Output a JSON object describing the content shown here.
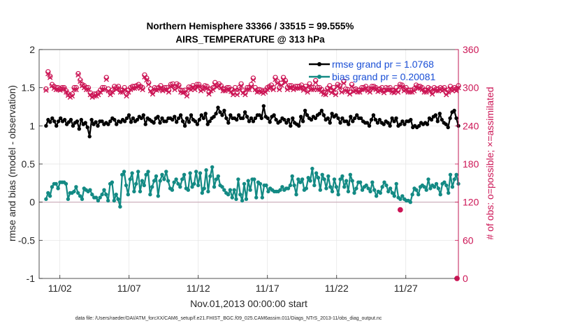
{
  "chart_data": {
    "type": "line",
    "title_line1": "Northern Hemisphere 33366 / 33515 = 99.555%",
    "title_line2": "AIRS_TEMPERATURE @ 313 hPa",
    "ylabel_left": "rmse and bias (model - observation)",
    "ylabel_right": "# of obs: o=possible; ×=assimilated",
    "xlabel": "Nov.01,2013 00:00:00 start",
    "footer": "data file: /Users/raeder/DAI/ATM_forcXX/CAM6_setup/f.e21.FHIST_BGC.f09_025.CAM6assim.011/Diags_NTrS_2013-11/obs_diag_output.nc",
    "ylim_left": [
      -1,
      2
    ],
    "ylim_right": [
      0,
      360
    ],
    "xlim": [
      0.5,
      30.8
    ],
    "left_ticks": [
      "-1",
      "-0.5",
      "0",
      "0.5",
      "1",
      "1.5",
      "2"
    ],
    "right_ticks": [
      "0",
      "60",
      "120",
      "180",
      "240",
      "300",
      "360"
    ],
    "x_ticks": [
      {
        "day": 2,
        "label": "11/02"
      },
      {
        "day": 7,
        "label": "11/07"
      },
      {
        "day": 12,
        "label": "11/12"
      },
      {
        "day": 17,
        "label": "11/17"
      },
      {
        "day": 22,
        "label": "11/22"
      },
      {
        "day": 27,
        "label": "11/27"
      }
    ],
    "legend": {
      "rmse": "rmse grand pr = 1.0768",
      "bias": "bias grand pr = 0.20081"
    },
    "colors": {
      "rmse": "#000000",
      "bias": "#138a84",
      "obs": "#cc1555",
      "legend_text": "#1a4fd6",
      "zero_line": "#c9a9b6",
      "grid": "#e3e3e3"
    },
    "series": [
      {
        "name": "rmse",
        "axis": "left",
        "values": [
          1.0,
          1.08,
          1.05,
          1.1,
          1.06,
          1.0,
          1.06,
          1.1,
          1.06,
          1.08,
          1.02,
          1.05,
          1.08,
          1.0,
          1.04,
          1.06,
          0.96,
          1.08,
          1.02,
          1.04,
          0.98,
          0.86,
          1.08,
          1.02,
          1.05,
          1.0,
          1.06,
          1.06,
          1.02,
          1.04,
          1.02,
          1.06,
          1.1,
          1.08,
          1.02,
          1.06,
          1.05,
          1.08,
          1.06,
          1.1,
          1.14,
          1.05,
          1.1,
          1.06,
          1.08,
          1.12,
          1.1,
          1.14,
          1.02,
          1.1,
          1.08,
          1.06,
          1.04,
          1.1,
          1.12,
          1.04,
          1.1,
          1.06,
          1.06,
          1.1,
          1.1,
          1.08,
          1.12,
          1.05,
          1.1,
          1.14,
          1.06,
          1.0,
          1.1,
          1.05,
          1.14,
          1.08,
          1.06,
          1.02,
          1.08,
          1.14,
          1.1,
          1.16,
          1.02,
          1.06,
          1.1,
          1.12,
          1.16,
          1.24,
          1.18,
          1.14,
          1.2,
          1.1,
          1.04,
          1.14,
          1.1,
          1.1,
          1.08,
          1.14,
          1.1,
          1.1,
          1.18,
          1.12,
          1.06,
          1.1,
          1.06,
          1.1,
          1.14,
          1.14,
          1.1,
          1.26,
          1.12,
          1.1,
          1.05,
          1.12,
          1.14,
          1.08,
          1.04,
          1.06,
          1.1,
          1.08,
          1.04,
          1.08,
          1.0,
          1.1,
          1.04,
          1.02,
          1.0,
          1.12,
          1.06,
          1.2,
          1.14,
          1.1,
          1.08,
          1.12,
          1.1,
          1.14,
          1.16,
          1.2,
          1.14,
          1.08,
          1.1,
          1.04,
          1.16,
          1.12,
          1.14,
          1.1,
          1.04,
          1.1,
          1.06,
          1.06,
          1.02,
          1.12,
          1.06,
          1.1,
          1.14,
          1.1,
          1.1,
          1.06,
          1.04,
          1.04,
          1.0,
          1.08,
          1.14,
          1.08,
          1.04,
          1.08,
          1.04,
          1.02,
          1.06,
          1.04,
          1.0,
          1.1,
          1.06,
          1.1,
          1.0,
          1.02,
          1.06,
          1.02,
          1.06,
          1.06,
          1.08,
          0.98,
          1.0,
          0.98,
          1.0,
          1.04,
          1.02,
          1.04,
          1.02,
          1.1,
          1.08,
          1.12,
          1.14,
          1.06,
          1.16,
          1.08,
          1.04,
          1.02,
          0.98,
          1.1,
          1.18,
          1.2,
          1.1,
          1.0
        ]
      },
      {
        "name": "bias",
        "axis": "left",
        "values": [
          0.04,
          0.12,
          0.08,
          0.2,
          0.24,
          0.24,
          0.18,
          0.26,
          0.26,
          0.26,
          0.24,
          0.04,
          0.12,
          0.12,
          0.14,
          0.2,
          0.12,
          0.08,
          0.04,
          0.18,
          0.16,
          0.14,
          0.16,
          0.1,
          0.06,
          0.06,
          0.02,
          0.06,
          0.1,
          0.16,
          0.1,
          0.02,
          0.24,
          0.26,
          0.02,
          0.1,
          0.04,
          -0.06,
          0.36,
          0.4,
          0.22,
          0.1,
          0.3,
          0.38,
          0.14,
          0.24,
          0.4,
          0.14,
          0.28,
          0.22,
          0.36,
          0.4,
          0.1,
          0.2,
          0.28,
          0.34,
          0.08,
          0.28,
          0.36,
          0.3,
          0.4,
          0.28,
          0.18,
          0.16,
          0.26,
          0.3,
          0.24,
          0.2,
          0.3,
          0.36,
          0.18,
          0.16,
          0.38,
          0.2,
          0.24,
          0.4,
          0.22,
          0.38,
          0.12,
          0.18,
          0.42,
          0.14,
          0.34,
          0.46,
          0.2,
          0.3,
          0.34,
          0.22,
          0.2,
          0.16,
          0.12,
          0.1,
          0.16,
          0.06,
          0.16,
          0.04,
          0.3,
          0.1,
          0.02,
          0.24,
          0.04,
          0.28,
          0.16,
          0.3,
          0.3,
          0.06,
          0.26,
          0.24,
          0.06,
          0.22,
          0.22,
          0.14,
          0.18,
          0.16,
          0.14,
          0.14,
          0.14,
          0.16,
          0.2,
          0.16,
          0.18,
          0.18,
          0.22,
          0.34,
          0.22,
          0.1,
          0.3,
          0.26,
          0.3,
          0.16,
          0.18,
          0.32,
          0.28,
          0.44,
          0.22,
          0.38,
          0.32,
          0.16,
          0.36,
          0.3,
          0.18,
          0.34,
          0.2,
          0.14,
          0.3,
          0.2,
          0.1,
          0.3,
          0.34,
          0.2,
          0.28,
          0.14,
          0.36,
          0.28,
          0.12,
          0.18,
          0.26,
          0.26,
          0.16,
          0.2,
          0.22,
          0.18,
          0.14,
          0.26,
          0.16,
          0.08,
          0.14,
          0.12,
          0.2,
          0.26,
          0.22,
          0.14,
          0.18,
          0.12,
          0.08,
          0.24,
          0.06,
          0.04,
          0.08,
          0.04,
          0.02,
          0.02,
          0.0,
          0.1,
          0.18,
          0.16,
          0.1,
          0.2,
          0.22,
          0.2,
          0.16,
          0.3,
          0.18,
          0.22,
          0.2,
          0.24,
          0.18,
          0.1,
          0.24,
          0.26,
          0.22,
          0.12,
          0.36,
          0.2,
          0.3,
          0.36,
          0.24
        ]
      },
      {
        "name": "obs_possible",
        "axis": "right",
        "values": [
          298,
          325,
          318,
          305,
          302,
          300,
          300,
          298,
          300,
          300,
          295,
          290,
          288,
          290,
          300,
          300,
          322,
          312,
          305,
          303,
          300,
          300,
          292,
          288,
          290,
          290,
          292,
          296,
          300,
          300,
          316,
          298,
          292,
          296,
          302,
          300,
          302,
          296,
          296,
          300,
          290,
          296,
          300,
          302,
          302,
          303,
          305,
          302,
          300,
          320,
          315,
          308,
          298,
          293,
          300,
          299,
          300,
          303,
          298,
          300,
          300,
          296,
          305,
          306,
          300,
          306,
          304,
          296,
          295,
          296,
          290,
          301,
          300,
          303,
          300,
          305,
          305,
          298,
          300,
          303,
          302,
          293,
          298,
          300,
          308,
          304,
          306,
          303,
          298,
          298,
          300,
          300,
          297,
          292,
          300,
          292,
          300,
          306,
          295,
          292,
          300,
          300,
          305,
          315,
          300,
          296,
          297,
          296,
          294,
          296,
          300,
          302,
          304,
          300,
          316,
          310,
          300,
          307,
          316,
          311,
          300,
          303,
          303,
          300,
          302,
          302,
          302,
          304,
          299,
          302,
          296,
          306,
          300,
          300,
          311,
          300,
          300,
          297,
          293,
          292,
          299,
          303,
          295,
          300,
          292,
          305,
          303,
          296,
          310,
          298,
          297,
          293,
          305,
          297,
          298,
          296,
          296,
          300,
          300,
          302,
          298,
          296,
          302,
          302,
          300,
          297,
          298,
          300,
          295,
          300,
          299,
          300,
          296,
          295,
          300,
          296,
          305,
          304,
          298,
          300,
          296,
          296,
          296,
          298,
          304,
          302,
          302,
          300,
          296,
          296,
          300,
          298,
          293,
          300,
          298,
          298,
          300,
          298,
          300,
          292,
          296,
          302,
          298,
          300,
          298,
          303
        ]
      },
      {
        "name": "obs_assimilated",
        "axis": "right",
        "values": [
          296,
          322,
          316,
          303,
          299,
          297,
          297,
          296,
          298,
          298,
          293,
          288,
          285,
          287,
          297,
          297,
          320,
          310,
          303,
          300,
          297,
          297,
          289,
          285,
          287,
          287,
          289,
          293,
          297,
          297,
          313,
          295,
          289,
          293,
          299,
          297,
          299,
          293,
          293,
          297,
          287,
          293,
          297,
          299,
          299,
          300,
          302,
          299,
          297,
          317,
          312,
          305,
          295,
          290,
          297,
          296,
          297,
          300,
          295,
          297,
          297,
          293,
          302,
          303,
          297,
          303,
          301,
          293,
          292,
          293,
          287,
          298,
          297,
          300,
          297,
          302,
          302,
          295,
          297,
          300,
          299,
          290,
          295,
          297,
          305,
          301,
          303,
          300,
          295,
          295,
          297,
          297,
          294,
          289,
          297,
          289,
          297,
          303,
          292,
          289,
          297,
          297,
          302,
          312,
          297,
          293,
          294,
          293,
          291,
          293,
          297,
          299,
          301,
          297,
          313,
          307,
          297,
          304,
          313,
          308,
          297,
          300,
          300,
          297,
          299,
          299,
          299,
          301,
          296,
          299,
          293,
          303,
          297,
          297,
          308,
          297,
          297,
          294,
          290,
          289,
          296,
          300,
          292,
          297,
          289,
          302,
          300,
          293,
          307,
          295,
          294,
          290,
          302,
          294,
          295,
          293,
          293,
          297,
          297,
          299,
          295,
          293,
          299,
          299,
          297,
          294,
          295,
          297,
          292,
          297,
          296,
          297,
          293,
          292,
          297,
          293,
          302,
          301,
          295,
          297,
          293,
          293,
          293,
          295,
          301,
          299,
          299,
          297,
          293,
          293,
          297,
          295,
          290,
          297,
          295,
          295,
          297,
          295,
          297,
          289,
          293,
          299,
          295,
          297,
          295,
          300
        ]
      }
    ]
  }
}
